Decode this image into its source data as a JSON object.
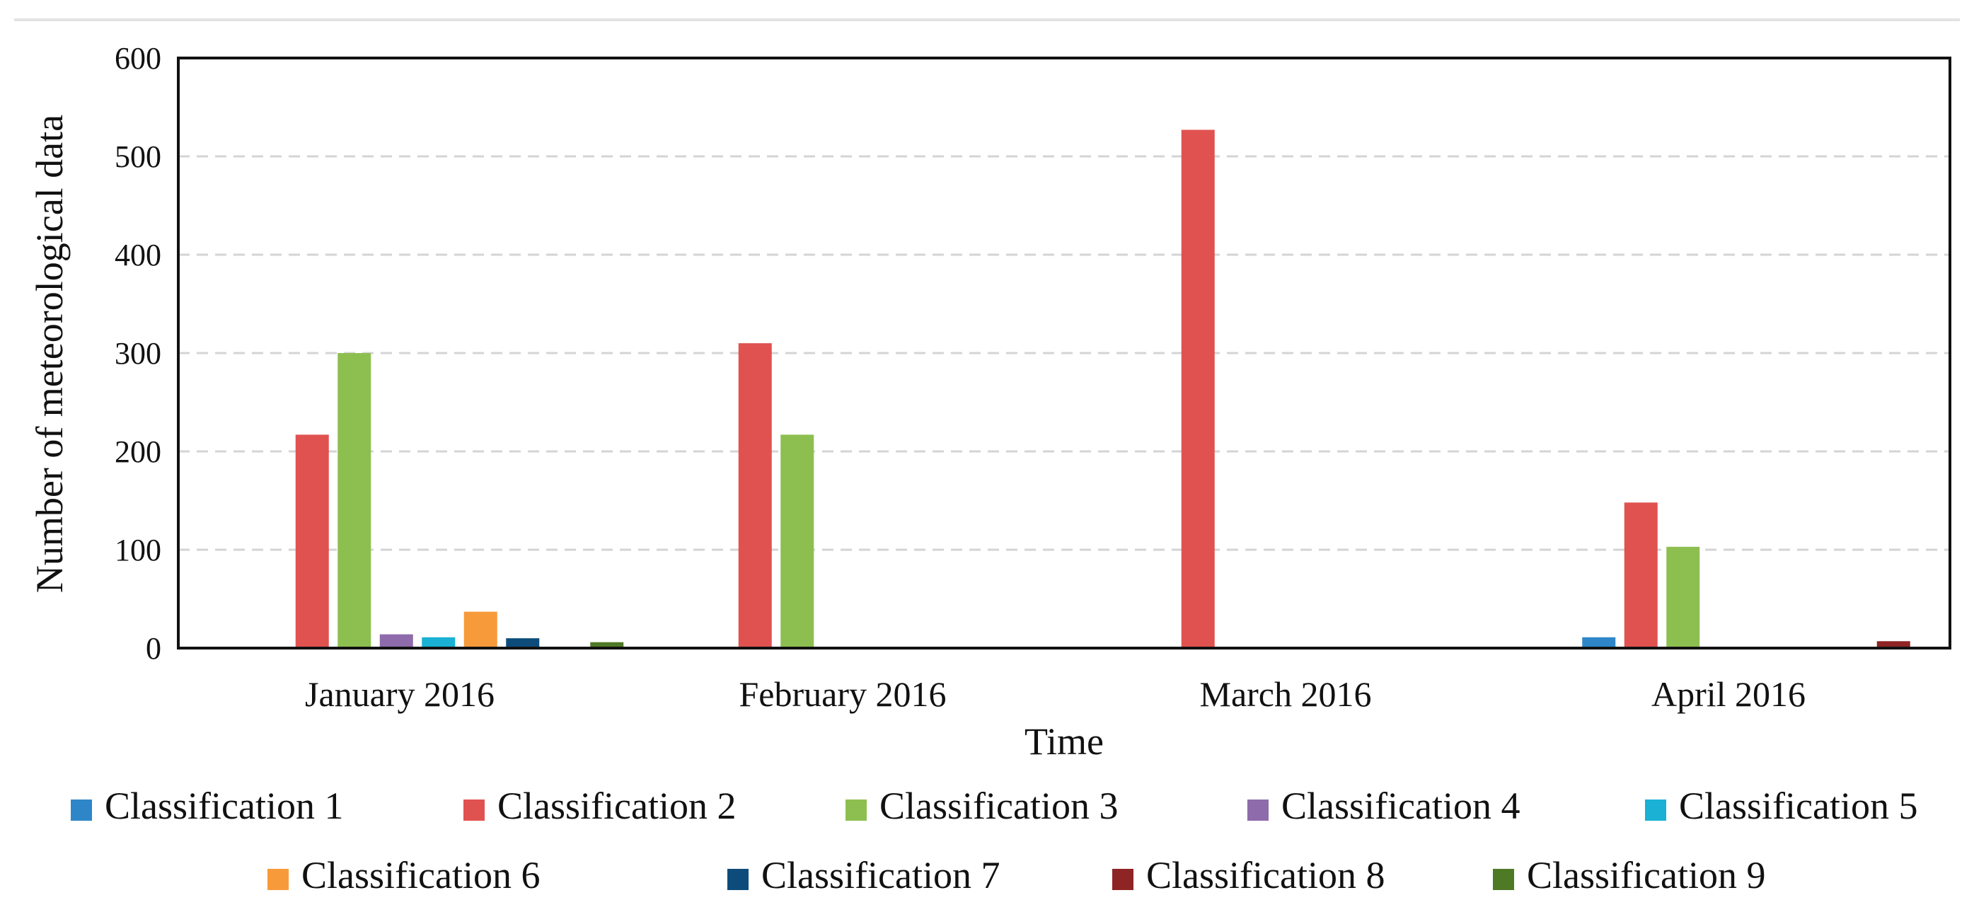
{
  "chart_data": {
    "type": "bar",
    "title": "",
    "xlabel": "Time",
    "ylabel": "Number of meteorological data",
    "ylim": [
      0,
      600
    ],
    "yticks": [
      0,
      100,
      200,
      300,
      400,
      500,
      600
    ],
    "grid": "horizontal dashed",
    "legend_position": "bottom",
    "categories": [
      "January 2016",
      "February 2016",
      "March 2016",
      "April 2016"
    ],
    "series": [
      {
        "name": "Classification 1",
        "color": "#2e86c8",
        "values": [
          0,
          1,
          1,
          11
        ]
      },
      {
        "name": "Classification 2",
        "color": "#e05250",
        "values": [
          217,
          310,
          527,
          148
        ]
      },
      {
        "name": "Classification 3",
        "color": "#8dbf50",
        "values": [
          300,
          217,
          0,
          103
        ]
      },
      {
        "name": "Classification 4",
        "color": "#8e6bab",
        "values": [
          14,
          0,
          0,
          0
        ]
      },
      {
        "name": "Classification 5",
        "color": "#1ab1d4",
        "values": [
          11,
          0,
          0,
          0
        ]
      },
      {
        "name": "Classification 6",
        "color": "#f79a3a",
        "values": [
          37,
          0,
          0,
          0
        ]
      },
      {
        "name": "Classification 7",
        "color": "#0d4c7a",
        "values": [
          10,
          0,
          0,
          0
        ]
      },
      {
        "name": "Classification 8",
        "color": "#8f2424",
        "values": [
          0,
          0,
          0,
          7
        ]
      },
      {
        "name": "Classification 9",
        "color": "#4e7a26",
        "values": [
          6,
          0,
          0,
          0
        ]
      }
    ]
  }
}
